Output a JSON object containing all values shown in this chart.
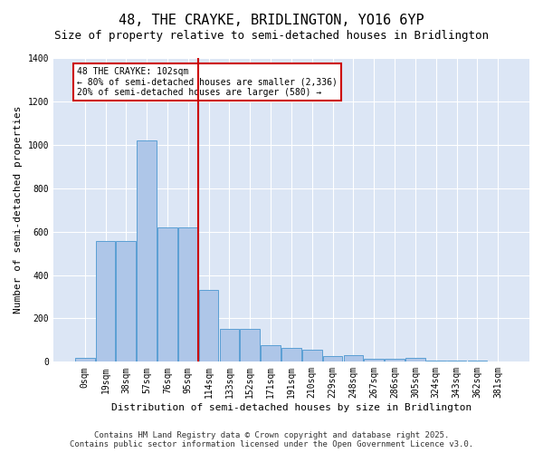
{
  "title": "48, THE CRAYKE, BRIDLINGTON, YO16 6YP",
  "subtitle": "Size of property relative to semi-detached houses in Bridlington",
  "xlabel": "Distribution of semi-detached houses by size in Bridlington",
  "ylabel": "Number of semi-detached properties",
  "bin_labels": [
    "0sqm",
    "19sqm",
    "38sqm",
    "57sqm",
    "76sqm",
    "95sqm",
    "114sqm",
    "133sqm",
    "152sqm",
    "171sqm",
    "191sqm",
    "210sqm",
    "229sqm",
    "248sqm",
    "267sqm",
    "286sqm",
    "305sqm",
    "324sqm",
    "343sqm",
    "362sqm",
    "381sqm"
  ],
  "bar_values": [
    20,
    555,
    555,
    1020,
    620,
    620,
    330,
    150,
    150,
    75,
    65,
    55,
    25,
    30,
    15,
    15,
    18,
    5,
    5,
    5,
    0
  ],
  "bar_color": "#aec6e8",
  "bar_edge_color": "#5a9fd4",
  "vline_x": 5.5,
  "vline_color": "#cc0000",
  "annotation_title": "48 THE CRAYKE: 102sqm",
  "annotation_line1": "← 80% of semi-detached houses are smaller (2,336)",
  "annotation_line2": "20% of semi-detached houses are larger (580) →",
  "annotation_box_color": "#cc0000",
  "ylim": [
    0,
    1400
  ],
  "yticks": [
    0,
    200,
    400,
    600,
    800,
    1000,
    1200,
    1400
  ],
  "bg_color": "#dce6f5",
  "footer1": "Contains HM Land Registry data © Crown copyright and database right 2025.",
  "footer2": "Contains public sector information licensed under the Open Government Licence v3.0.",
  "title_fontsize": 11,
  "subtitle_fontsize": 9,
  "axis_label_fontsize": 8,
  "tick_fontsize": 7,
  "footer_fontsize": 6.5
}
